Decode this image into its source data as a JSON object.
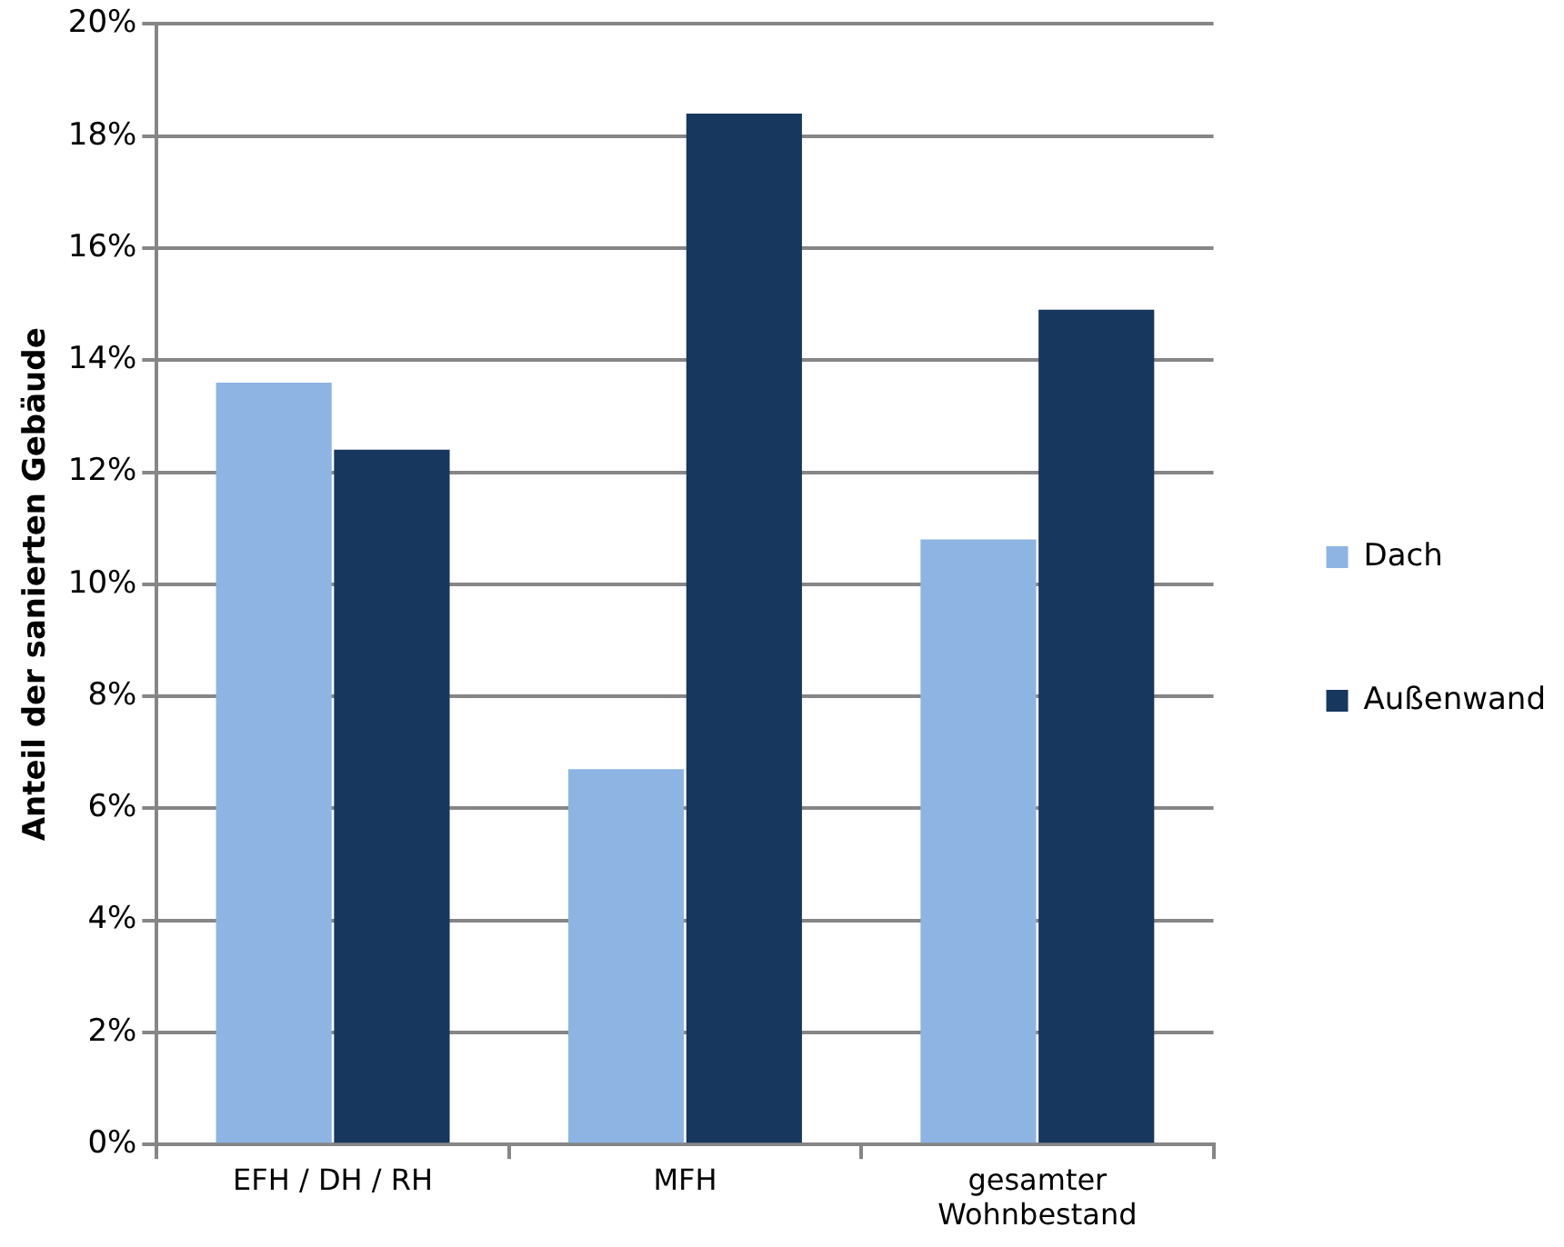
{
  "chart_data": {
    "type": "bar",
    "ylabel": "Anteil der sanierten Gebäude",
    "categories": [
      "EFH / DH / RH",
      "MFH",
      "gesamter Wohnbestand"
    ],
    "series": [
      {
        "name": "Dach",
        "color": "#8eb4e3",
        "values": [
          13.6,
          6.7,
          10.8
        ]
      },
      {
        "name": "Außenwand",
        "color": "#17375e",
        "values": [
          12.4,
          18.4,
          14.9
        ]
      }
    ],
    "ylim": [
      0,
      20
    ],
    "yticks": [
      {
        "value": 0,
        "label": "0%"
      },
      {
        "value": 2,
        "label": "2%"
      },
      {
        "value": 4,
        "label": "4%"
      },
      {
        "value": 6,
        "label": "6%"
      },
      {
        "value": 8,
        "label": "8%"
      },
      {
        "value": 10,
        "label": "10%"
      },
      {
        "value": 12,
        "label": "12%"
      },
      {
        "value": 14,
        "label": "14%"
      },
      {
        "value": 16,
        "label": "16%"
      },
      {
        "value": 18,
        "label": "18%"
      },
      {
        "value": 20,
        "label": "20%"
      }
    ],
    "grid": "y",
    "legend": "right"
  }
}
